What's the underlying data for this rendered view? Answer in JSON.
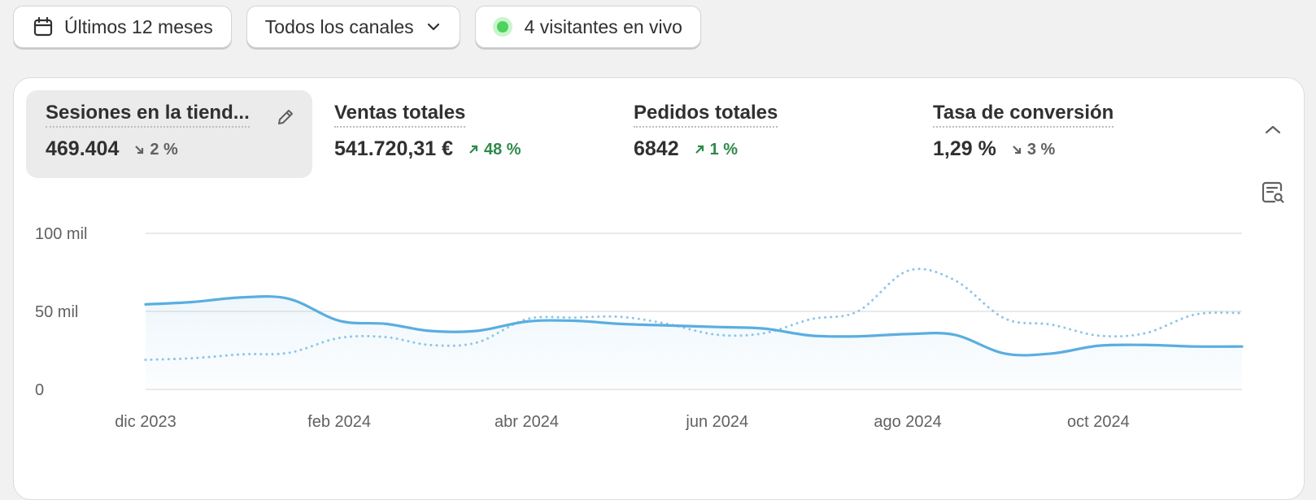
{
  "toolbar": {
    "date_range_label": "Últimos 12 meses",
    "channels_label": "Todos los canales",
    "live_visitors_label": "4 visitantes en vivo"
  },
  "metrics": [
    {
      "label": "Sesiones en la tiend...",
      "value": "469.404",
      "change": "2 %",
      "trend": "down",
      "active": true
    },
    {
      "label": "Ventas totales",
      "value": "541.720,31 €",
      "change": "48 %",
      "trend": "up",
      "active": false
    },
    {
      "label": "Pedidos totales",
      "value": "6842",
      "change": "1 %",
      "trend": "up",
      "active": false
    },
    {
      "label": "Tasa de conversión",
      "value": "1,29 %",
      "change": "3 %",
      "trend": "down",
      "active": false
    }
  ],
  "chart_data": {
    "type": "line",
    "y_tick_labels": [
      "0",
      "50 mil",
      "100 mil"
    ],
    "ylim": [
      0,
      100000
    ],
    "x_tick_labels": [
      "dic 2023",
      "feb 2024",
      "abr 2024",
      "jun 2024",
      "ago 2024",
      "oct 2024"
    ],
    "grid": true,
    "series": [
      {
        "style": "solid",
        "color": "#5aaee0",
        "area_fill": true,
        "points": [
          [
            "2023-12-01",
            54500
          ],
          [
            "2023-12-16",
            56000
          ],
          [
            "2024-01-01",
            59000
          ],
          [
            "2024-01-16",
            58000
          ],
          [
            "2024-02-01",
            44000
          ],
          [
            "2024-02-16",
            42000
          ],
          [
            "2024-03-01",
            37500
          ],
          [
            "2024-03-16",
            37500
          ],
          [
            "2024-04-01",
            43500
          ],
          [
            "2024-04-16",
            44000
          ],
          [
            "2024-05-01",
            42000
          ],
          [
            "2024-05-16",
            41000
          ],
          [
            "2024-06-01",
            40000
          ],
          [
            "2024-06-16",
            39000
          ],
          [
            "2024-07-01",
            34500
          ],
          [
            "2024-07-16",
            34000
          ],
          [
            "2024-08-01",
            35500
          ],
          [
            "2024-08-16",
            35000
          ],
          [
            "2024-09-01",
            23000
          ],
          [
            "2024-09-16",
            23000
          ],
          [
            "2024-10-01",
            28000
          ],
          [
            "2024-10-16",
            28500
          ],
          [
            "2024-11-01",
            27500
          ],
          [
            "2024-11-16",
            27500
          ]
        ]
      },
      {
        "style": "dotted",
        "color": "#8ec6e8",
        "area_fill": false,
        "points": [
          [
            "2023-12-01",
            19000
          ],
          [
            "2023-12-16",
            20000
          ],
          [
            "2024-01-01",
            22500
          ],
          [
            "2024-01-16",
            23500
          ],
          [
            "2024-02-01",
            33000
          ],
          [
            "2024-02-16",
            33500
          ],
          [
            "2024-03-01",
            28500
          ],
          [
            "2024-03-16",
            30000
          ],
          [
            "2024-04-01",
            45000
          ],
          [
            "2024-04-16",
            46000
          ],
          [
            "2024-05-01",
            46500
          ],
          [
            "2024-05-16",
            42000
          ],
          [
            "2024-06-01",
            35000
          ],
          [
            "2024-06-16",
            36000
          ],
          [
            "2024-07-01",
            45000
          ],
          [
            "2024-07-16",
            50000
          ],
          [
            "2024-08-01",
            76000
          ],
          [
            "2024-08-16",
            70000
          ],
          [
            "2024-09-01",
            45500
          ],
          [
            "2024-09-16",
            41500
          ],
          [
            "2024-10-01",
            34500
          ],
          [
            "2024-10-16",
            36000
          ],
          [
            "2024-11-01",
            48000
          ],
          [
            "2024-11-16",
            49000
          ]
        ]
      }
    ]
  },
  "icons": {
    "calendar": "calendar-icon",
    "chevron_down": "chevron-down-icon",
    "live_dot": "live-status-dot",
    "edit": "pencil-icon",
    "collapse": "chevron-up-icon",
    "explore": "explore-report-icon",
    "trend_up": "arrow-up-right-icon",
    "trend_down": "arrow-down-right-icon"
  },
  "colors": {
    "trend_up": "#2e8a4b",
    "trend_down": "#616161",
    "live_dot": "#4dd25a",
    "series_primary": "#5aaee0",
    "series_comparison": "#8ec6e8"
  }
}
